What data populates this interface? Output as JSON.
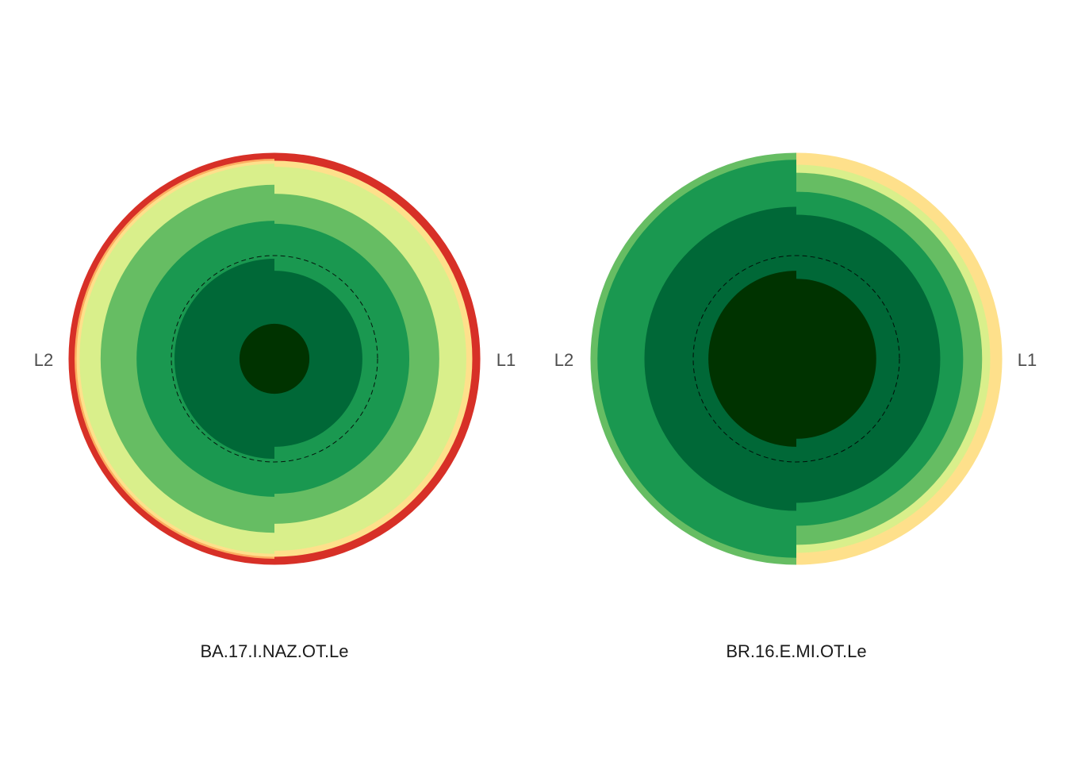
{
  "chart_data": [
    {
      "type": "polar-rings",
      "title": "BA.17.I.NAZ.OT.Le",
      "left_label": "L2",
      "right_label": "L1",
      "left_half": {
        "rings": [
          {
            "outer": 0.35,
            "color": "#003300"
          },
          {
            "outer": 1.0,
            "color": "#006837"
          },
          {
            "outer": 1.38,
            "color": "#1a9850"
          },
          {
            "outer": 1.74,
            "color": "#66bd63"
          },
          {
            "outer": 1.95,
            "color": "#d9ef8b"
          },
          {
            "outer": 1.98,
            "color": "#fee08b"
          },
          {
            "outer": 2.0,
            "color": "#fdae61"
          },
          {
            "outer": 2.06,
            "color": "#d73027"
          }
        ]
      },
      "right_half": {
        "rings": [
          {
            "outer": 0.35,
            "color": "#003300"
          },
          {
            "outer": 0.88,
            "color": "#006837"
          },
          {
            "outer": 1.35,
            "color": "#1a9850"
          },
          {
            "outer": 1.65,
            "color": "#66bd63"
          },
          {
            "outer": 1.92,
            "color": "#d9ef8b"
          },
          {
            "outer": 1.98,
            "color": "#fee08b"
          },
          {
            "outer": 2.06,
            "color": "#d73027"
          }
        ]
      },
      "reference_circle": 1.0
    },
    {
      "type": "polar-rings",
      "title": "BR.16.E.MI.OT.Le",
      "left_label": "L2",
      "right_label": "L1",
      "left_half": {
        "rings": [
          {
            "outer": 0.88,
            "color": "#003300"
          },
          {
            "outer": 1.52,
            "color": "#006837"
          },
          {
            "outer": 1.99,
            "color": "#1a9850"
          },
          {
            "outer": 2.06,
            "color": "#66bd63"
          }
        ]
      },
      "right_half": {
        "rings": [
          {
            "outer": 0.8,
            "color": "#003300"
          },
          {
            "outer": 1.44,
            "color": "#006837"
          },
          {
            "outer": 1.67,
            "color": "#1a9850"
          },
          {
            "outer": 1.86,
            "color": "#66bd63"
          },
          {
            "outer": 1.94,
            "color": "#d9ef8b"
          },
          {
            "outer": 2.06,
            "color": "#fee08b"
          }
        ]
      },
      "reference_circle": 1.0
    }
  ]
}
